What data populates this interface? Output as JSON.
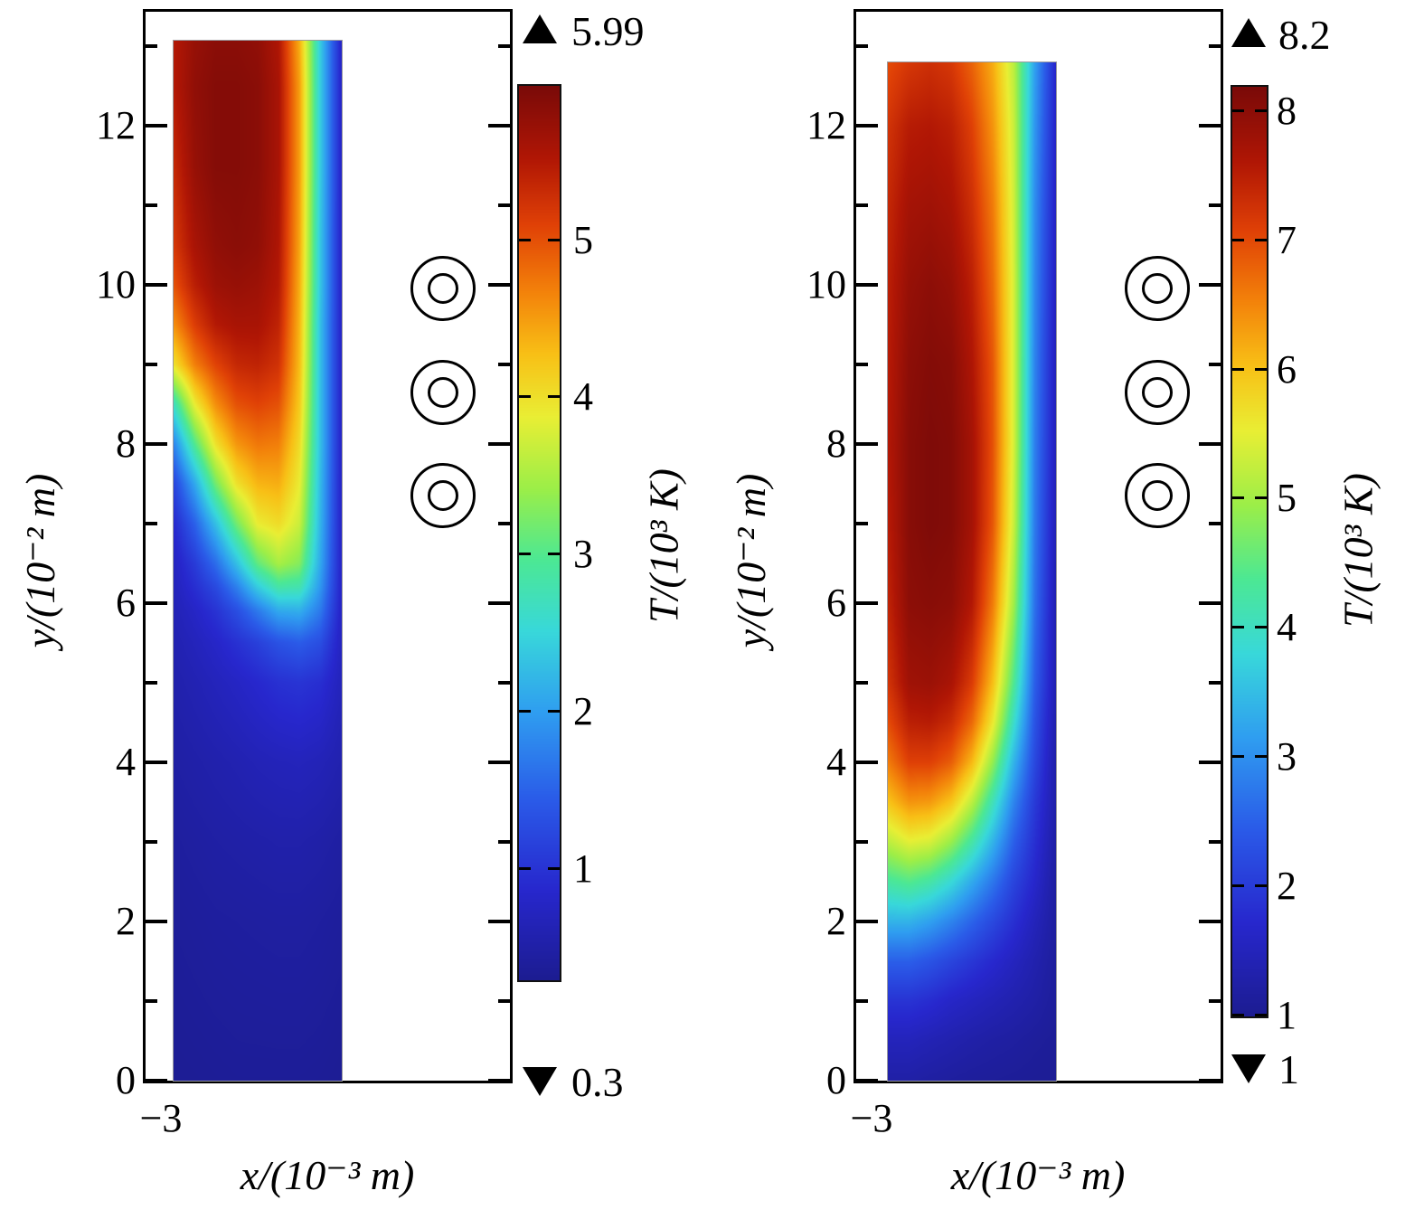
{
  "figure": {
    "background": "#ffffff",
    "description_unit_note": ""
  },
  "colormap": {
    "stops": [
      [
        0.0,
        "#1c1c91"
      ],
      [
        0.1,
        "#2727cd"
      ],
      [
        0.2,
        "#2a5ae8"
      ],
      [
        0.3,
        "#2f9ef0"
      ],
      [
        0.39,
        "#38d8da"
      ],
      [
        0.47,
        "#4ce894"
      ],
      [
        0.55,
        "#9cee48"
      ],
      [
        0.63,
        "#e9ee34"
      ],
      [
        0.7,
        "#f8c016"
      ],
      [
        0.77,
        "#f3820a"
      ],
      [
        0.845,
        "#e04106"
      ],
      [
        0.92,
        "#b01605"
      ],
      [
        1.0,
        "#7a0a08"
      ]
    ]
  },
  "chart_data": {
    "type": "heatmap",
    "panels": [
      {
        "y_axis": {
          "label": "y/(10⁻² m)",
          "major_ticks": [
            0,
            2,
            4,
            6,
            8,
            10,
            12
          ],
          "minor_ticks": [
            1,
            3,
            5,
            7,
            9,
            11,
            13
          ],
          "range": [
            0,
            13.4
          ]
        },
        "x_axis": {
          "label": "x/(10⁻³ m)",
          "ticks": [
            -3
          ],
          "tick_labels": [
            "−3"
          ],
          "range": [
            -3.5,
            3.0
          ]
        },
        "colorbar": {
          "label": "T/(10³ K)",
          "vmin": 0.3,
          "vmax": 5.99,
          "ticks": [
            1,
            2,
            3,
            4,
            5
          ],
          "max_label": "5.99",
          "min_label": "0.3"
        },
        "probes": {
          "x": 1.8,
          "ys": [
            9.95,
            8.65,
            7.35
          ]
        },
        "field": {
          "x_range": [
            -3,
            0
          ],
          "y_range": [
            0,
            13.07
          ],
          "row_y": [
            13.07,
            12.5,
            11.5,
            10.5,
            10,
            9.5,
            9,
            8.5,
            8,
            7.5,
            7,
            6.5,
            6.2,
            5.9,
            5.5,
            5,
            4,
            3,
            2,
            0
          ],
          "grid": [
            [
              5.5,
              5.75,
              5.85,
              5.85,
              5.8,
              5.55,
              4.4,
              2.4,
              0.8
            ],
            [
              5.5,
              5.8,
              5.9,
              5.9,
              5.85,
              5.6,
              4.5,
              2.4,
              0.8
            ],
            [
              5.35,
              5.75,
              5.9,
              5.9,
              5.85,
              5.6,
              4.5,
              2.4,
              0.8
            ],
            [
              5.2,
              5.6,
              5.8,
              5.85,
              5.8,
              5.55,
              4.45,
              2.35,
              0.8
            ],
            [
              5.0,
              5.45,
              5.7,
              5.75,
              5.7,
              5.5,
              4.4,
              2.35,
              0.8
            ],
            [
              4.6,
              5.15,
              5.5,
              5.6,
              5.6,
              5.4,
              4.35,
              2.3,
              0.8
            ],
            [
              4.0,
              4.7,
              5.1,
              5.35,
              5.4,
              5.25,
              4.3,
              2.3,
              0.8
            ],
            [
              2.7,
              3.9,
              4.6,
              5.0,
              5.1,
              5.0,
              4.2,
              2.3,
              0.8
            ],
            [
              1.8,
              3.0,
              4.0,
              4.55,
              4.75,
              4.7,
              4.05,
              2.3,
              0.8
            ],
            [
              1.2,
              2.1,
              3.2,
              4.0,
              4.35,
              4.4,
              3.9,
              2.25,
              0.8
            ],
            [
              0.9,
              1.5,
              2.3,
              3.2,
              3.9,
              4.05,
              3.7,
              2.2,
              0.8
            ],
            [
              0.75,
              1.1,
              1.6,
              2.3,
              3.1,
              3.5,
              3.3,
              2.1,
              0.8
            ],
            [
              0.7,
              0.95,
              1.25,
              1.75,
              2.4,
              2.85,
              2.8,
              1.95,
              0.8
            ],
            [
              0.65,
              0.8,
              1.0,
              1.3,
              1.7,
              2.1,
              2.15,
              1.7,
              0.78
            ],
            [
              0.6,
              0.7,
              0.82,
              0.98,
              1.15,
              1.35,
              1.45,
              1.3,
              0.75
            ],
            [
              0.55,
              0.62,
              0.7,
              0.78,
              0.88,
              0.98,
              1.02,
              0.95,
              0.7
            ],
            [
              0.48,
              0.52,
              0.56,
              0.6,
              0.65,
              0.68,
              0.7,
              0.66,
              0.58
            ],
            [
              0.42,
              0.45,
              0.48,
              0.5,
              0.52,
              0.54,
              0.54,
              0.51,
              0.46
            ],
            [
              0.38,
              0.4,
              0.42,
              0.43,
              0.44,
              0.45,
              0.45,
              0.43,
              0.4
            ],
            [
              0.33,
              0.34,
              0.35,
              0.36,
              0.36,
              0.36,
              0.36,
              0.35,
              0.33
            ]
          ]
        }
      },
      {
        "y_axis": {
          "label": "y/(10⁻² m)",
          "major_ticks": [
            0,
            2,
            4,
            6,
            8,
            10,
            12
          ],
          "minor_ticks": [
            1,
            3,
            5,
            7,
            9,
            11,
            13
          ],
          "range": [
            0,
            13.4
          ]
        },
        "x_axis": {
          "label": "x/(10⁻³ m)",
          "ticks": [
            -3
          ],
          "tick_labels": [
            "−3"
          ],
          "range": [
            -3.5,
            3.0
          ]
        },
        "colorbar": {
          "label": "T/(10³ K)",
          "vmin": 1,
          "vmax": 8.2,
          "ticks": [
            1,
            2,
            3,
            4,
            5,
            6,
            7,
            8
          ],
          "max_label": "8.2",
          "min_label": "1"
        },
        "probes": {
          "x": 1.8,
          "ys": [
            9.95,
            8.65,
            7.35
          ]
        },
        "field": {
          "x_range": [
            -3,
            0
          ],
          "y_range": [
            0,
            12.8
          ],
          "row_y": [
            12.8,
            12,
            11,
            10,
            9,
            8,
            7,
            6,
            5,
            4.5,
            4,
            3.5,
            3,
            2.5,
            2,
            1.5,
            1,
            0.5,
            0
          ],
          "grid": [
            [
              7.0,
              7.2,
              7.3,
              7.2,
              6.8,
              6.2,
              5.2,
              3.2,
              1.7
            ],
            [
              7.25,
              7.55,
              7.6,
              7.5,
              7.1,
              6.4,
              5.3,
              3.1,
              1.65
            ],
            [
              7.4,
              7.75,
              7.8,
              7.7,
              7.3,
              6.6,
              5.35,
              3.0,
              1.6
            ],
            [
              7.5,
              7.9,
              8.0,
              7.9,
              7.5,
              6.75,
              5.4,
              2.95,
              1.55
            ],
            [
              7.55,
              8.0,
              8.1,
              8.05,
              7.65,
              6.9,
              5.4,
              2.9,
              1.5
            ],
            [
              7.6,
              8.05,
              8.15,
              8.1,
              7.75,
              6.95,
              5.4,
              2.85,
              1.5
            ],
            [
              7.55,
              8.05,
              8.15,
              8.1,
              7.75,
              6.9,
              5.3,
              2.8,
              1.45
            ],
            [
              7.45,
              8.0,
              8.05,
              8.0,
              7.6,
              6.6,
              5.0,
              2.7,
              1.4
            ],
            [
              7.25,
              7.8,
              7.85,
              7.7,
              7.15,
              6.05,
              4.4,
              2.5,
              1.4
            ],
            [
              7.0,
              7.5,
              7.55,
              7.35,
              6.75,
              5.6,
              3.95,
              2.35,
              1.35
            ],
            [
              6.6,
              7.1,
              7.1,
              6.85,
              6.1,
              4.9,
              3.4,
              2.2,
              1.3
            ],
            [
              6.0,
              6.4,
              6.35,
              6.0,
              5.2,
              4.1,
              2.9,
              2.0,
              1.3
            ],
            [
              5.2,
              5.5,
              5.4,
              4.95,
              4.25,
              3.4,
              2.5,
              1.85,
              1.25
            ],
            [
              4.3,
              4.45,
              4.25,
              3.85,
              3.3,
              2.75,
              2.15,
              1.7,
              1.2
            ],
            [
              3.4,
              3.4,
              3.2,
              2.9,
              2.55,
              2.2,
              1.85,
              1.5,
              1.18
            ],
            [
              2.5,
              2.5,
              2.35,
              2.15,
              1.95,
              1.75,
              1.55,
              1.35,
              1.15
            ],
            [
              1.9,
              1.9,
              1.8,
              1.65,
              1.55,
              1.45,
              1.35,
              1.25,
              1.12
            ],
            [
              1.5,
              1.5,
              1.42,
              1.35,
              1.28,
              1.22,
              1.18,
              1.12,
              1.08
            ],
            [
              1.25,
              1.25,
              1.2,
              1.16,
              1.12,
              1.1,
              1.08,
              1.06,
              1.05
            ]
          ]
        }
      }
    ]
  }
}
